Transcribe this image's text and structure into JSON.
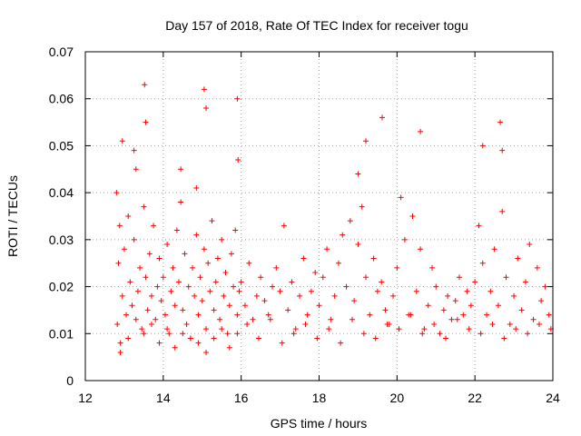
{
  "chart_data": {
    "type": "scatter",
    "title": "Day 157 of 2018, Rate Of TEC Index for receiver togu",
    "xlabel": "GPS time / hours",
    "ylabel": "ROTI / TECUs",
    "xlim": [
      12,
      24
    ],
    "ylim": [
      0,
      0.07
    ],
    "x_ticks": [
      12,
      14,
      16,
      18,
      20,
      22,
      24
    ],
    "x_tick_labels": [
      "12",
      "14",
      "16",
      "18",
      "20",
      "22",
      "24"
    ],
    "y_ticks": [
      0,
      0.01,
      0.02,
      0.03,
      0.04,
      0.05,
      0.06,
      0.07
    ],
    "y_tick_labels": [
      "0",
      "0.01",
      "0.02",
      "0.03",
      "0.04",
      "0.05",
      "0.06",
      "0.07"
    ],
    "grid": true,
    "marker": "+",
    "series": [
      {
        "name": "ROTI",
        "color": "#ff0000",
        "x": [
          12.8,
          12.82,
          12.85,
          12.88,
          12.9,
          12.95,
          13.0,
          13.05,
          13.1,
          13.15,
          13.2,
          13.25,
          13.3,
          13.35,
          13.4,
          13.45,
          13.5,
          13.55,
          13.6,
          13.65,
          13.7,
          13.75,
          13.8,
          13.85,
          13.9,
          13.95,
          14.0,
          14.05,
          14.1,
          14.15,
          14.2,
          14.25,
          14.3,
          14.35,
          14.4,
          14.45,
          14.5,
          14.55,
          14.6,
          14.65,
          14.7,
          14.75,
          14.8,
          14.85,
          14.9,
          14.95,
          15.0,
          15.05,
          15.1,
          15.15,
          15.2,
          15.25,
          15.3,
          15.35,
          15.4,
          15.45,
          15.5,
          15.55,
          15.6,
          15.65,
          15.7,
          15.75,
          15.8,
          15.85,
          15.9,
          15.95,
          16.0,
          16.1,
          16.2,
          16.3,
          16.4,
          16.5,
          16.6,
          16.7,
          16.8,
          16.9,
          17.0,
          17.1,
          17.2,
          17.3,
          17.4,
          17.5,
          17.6,
          17.7,
          17.8,
          17.9,
          18.0,
          18.1,
          18.2,
          18.3,
          18.4,
          18.5,
          18.6,
          18.7,
          18.8,
          18.9,
          19.0,
          19.1,
          19.2,
          19.3,
          19.4,
          19.5,
          19.6,
          19.7,
          19.8,
          19.9,
          20.0,
          20.1,
          20.2,
          20.3,
          20.4,
          20.5,
          20.6,
          20.7,
          20.8,
          20.9,
          21.0,
          21.1,
          21.2,
          21.3,
          21.4,
          21.5,
          21.6,
          21.7,
          21.8,
          21.9,
          22.0,
          22.1,
          22.2,
          22.3,
          22.4,
          22.5,
          22.6,
          22.7,
          22.8,
          22.9,
          23.0,
          23.1,
          23.2,
          23.3,
          23.4,
          23.5,
          23.6,
          23.7,
          23.8,
          23.9,
          12.9,
          13.1,
          13.3,
          13.5,
          13.7,
          13.9,
          14.1,
          14.3,
          14.5,
          14.7,
          14.9,
          15.1,
          15.3,
          15.5,
          15.7,
          15.9,
          16.15,
          16.45,
          16.75,
          17.05,
          17.35,
          17.65,
          17.95,
          18.25,
          18.55,
          18.85,
          19.15,
          19.45,
          19.75,
          20.05,
          20.35,
          20.65,
          20.95,
          21.25,
          21.55,
          21.85,
          22.15,
          22.45,
          22.75,
          23.05,
          23.35,
          23.65,
          23.95,
          13.52,
          13.55,
          15.05,
          15.1,
          15.9,
          15.92,
          19.62,
          20.6,
          22.65,
          22.7,
          22.2,
          19.2,
          12.95,
          13.25,
          14.45,
          14.85,
          19.0
        ],
        "y": [
          0.04,
          0.012,
          0.025,
          0.033,
          0.008,
          0.018,
          0.028,
          0.014,
          0.035,
          0.021,
          0.016,
          0.03,
          0.045,
          0.019,
          0.024,
          0.011,
          0.037,
          0.022,
          0.015,
          0.027,
          0.018,
          0.033,
          0.013,
          0.02,
          0.026,
          0.017,
          0.022,
          0.014,
          0.029,
          0.01,
          0.019,
          0.024,
          0.016,
          0.032,
          0.021,
          0.038,
          0.015,
          0.027,
          0.012,
          0.02,
          0.009,
          0.024,
          0.018,
          0.031,
          0.014,
          0.022,
          0.017,
          0.028,
          0.011,
          0.025,
          0.019,
          0.034,
          0.015,
          0.021,
          0.026,
          0.013,
          0.03,
          0.018,
          0.023,
          0.01,
          0.016,
          0.027,
          0.02,
          0.032,
          0.014,
          0.019,
          0.021,
          0.016,
          0.025,
          0.013,
          0.018,
          0.022,
          0.017,
          0.014,
          0.02,
          0.024,
          0.019,
          0.033,
          0.015,
          0.021,
          0.011,
          0.018,
          0.026,
          0.014,
          0.019,
          0.023,
          0.016,
          0.022,
          0.028,
          0.013,
          0.018,
          0.025,
          0.031,
          0.02,
          0.034,
          0.017,
          0.029,
          0.037,
          0.022,
          0.014,
          0.026,
          0.019,
          0.021,
          0.015,
          0.012,
          0.018,
          0.024,
          0.039,
          0.03,
          0.014,
          0.035,
          0.019,
          0.028,
          0.011,
          0.016,
          0.024,
          0.02,
          0.01,
          0.015,
          0.018,
          0.013,
          0.017,
          0.022,
          0.014,
          0.019,
          0.016,
          0.021,
          0.033,
          0.025,
          0.014,
          0.019,
          0.028,
          0.016,
          0.036,
          0.022,
          0.012,
          0.018,
          0.026,
          0.015,
          0.021,
          0.029,
          0.013,
          0.024,
          0.017,
          0.02,
          0.014,
          0.006,
          0.009,
          0.013,
          0.01,
          0.012,
          0.008,
          0.011,
          0.007,
          0.01,
          0.009,
          0.008,
          0.006,
          0.009,
          0.011,
          0.007,
          0.01,
          0.012,
          0.009,
          0.013,
          0.008,
          0.01,
          0.012,
          0.009,
          0.011,
          0.008,
          0.013,
          0.01,
          0.009,
          0.012,
          0.011,
          0.014,
          0.01,
          0.012,
          0.009,
          0.013,
          0.011,
          0.01,
          0.012,
          0.009,
          0.011,
          0.01,
          0.012,
          0.011,
          0.063,
          0.055,
          0.062,
          0.058,
          0.06,
          0.047,
          0.056,
          0.053,
          0.055,
          0.049,
          0.05,
          0.051,
          0.051,
          0.049,
          0.045,
          0.041,
          0.044
        ]
      }
    ]
  }
}
